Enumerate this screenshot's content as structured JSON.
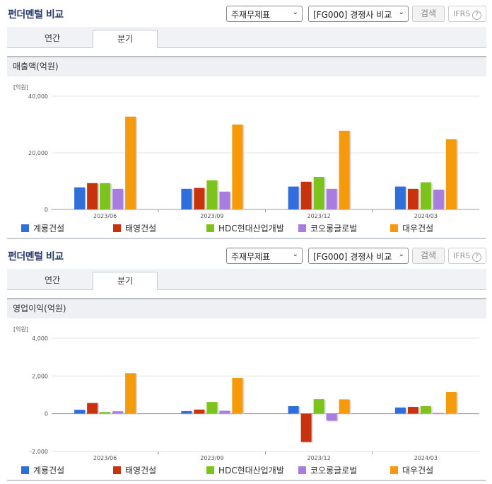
{
  "panels": [
    {
      "title": "펀더멘털 비교",
      "select1": "주재무제표",
      "select2": "[FG000] 경쟁사 비교",
      "search_label": "검색",
      "ifrs_label": "IFRS",
      "ifrs_help": "?",
      "tabs": [
        "연간",
        "분기"
      ],
      "active_tab": 1,
      "header": "매출액(억원)",
      "chart_data": {
        "type": "bar",
        "unit_label": "[억원]",
        "categories": [
          "2023/06",
          "2023/09",
          "2023/12",
          "2024/03"
        ],
        "ylim": [
          0,
          40000
        ],
        "yticks": [
          0,
          20000,
          40000
        ],
        "ytick_labels": [
          "0",
          "20,000",
          "40,000"
        ],
        "grid": true,
        "legend": "bottom",
        "series": [
          {
            "name": "계룡건설",
            "color": "#2f6fdc",
            "values": [
              7800,
              7300,
              8100,
              8100
            ]
          },
          {
            "name": "태영건설",
            "color": "#c9320f",
            "values": [
              9300,
              7600,
              9800,
              7300
            ]
          },
          {
            "name": "HDC현대산업개발",
            "color": "#7cc31c",
            "values": [
              9300,
              10300,
              11500,
              9600
            ]
          },
          {
            "name": "코오롱글로벌",
            "color": "#a97de0",
            "values": [
              7300,
              6300,
              7300,
              7000
            ]
          },
          {
            "name": "대우건설",
            "color": "#f59a0a",
            "values": [
              32800,
              30000,
              27800,
              24800
            ]
          }
        ]
      }
    },
    {
      "title": "펀더멘털 비교",
      "select1": "주재무제표",
      "select2": "[FG000] 경쟁사 비교",
      "search_label": "검색",
      "ifrs_label": "IFRS",
      "ifrs_help": "?",
      "tabs": [
        "연간",
        "분기"
      ],
      "active_tab": 1,
      "header": "영업이익(억원)",
      "chart_data": {
        "type": "bar",
        "unit_label": "[억원]",
        "categories": [
          "2023/06",
          "2023/09",
          "2023/12",
          "2024/03"
        ],
        "ylim": [
          -2000,
          4000
        ],
        "yticks": [
          -2000,
          0,
          2000,
          4000
        ],
        "ytick_labels": [
          "-2,000",
          "0",
          "2,000",
          "4,000"
        ],
        "grid": true,
        "legend": "bottom",
        "series": [
          {
            "name": "계룡건설",
            "color": "#2f6fdc",
            "values": [
              210,
              140,
              400,
              330
            ]
          },
          {
            "name": "태영건설",
            "color": "#c9320f",
            "values": [
              570,
              220,
              -1500,
              360
            ]
          },
          {
            "name": "HDC현대산업개발",
            "color": "#7cc31c",
            "values": [
              90,
              620,
              770,
              400
            ]
          },
          {
            "name": "코오롱글로벌",
            "color": "#a97de0",
            "values": [
              130,
              160,
              -370,
              40
            ]
          },
          {
            "name": "대우건설",
            "color": "#f59a0a",
            "values": [
              2150,
              1900,
              760,
              1150
            ]
          }
        ]
      }
    }
  ]
}
